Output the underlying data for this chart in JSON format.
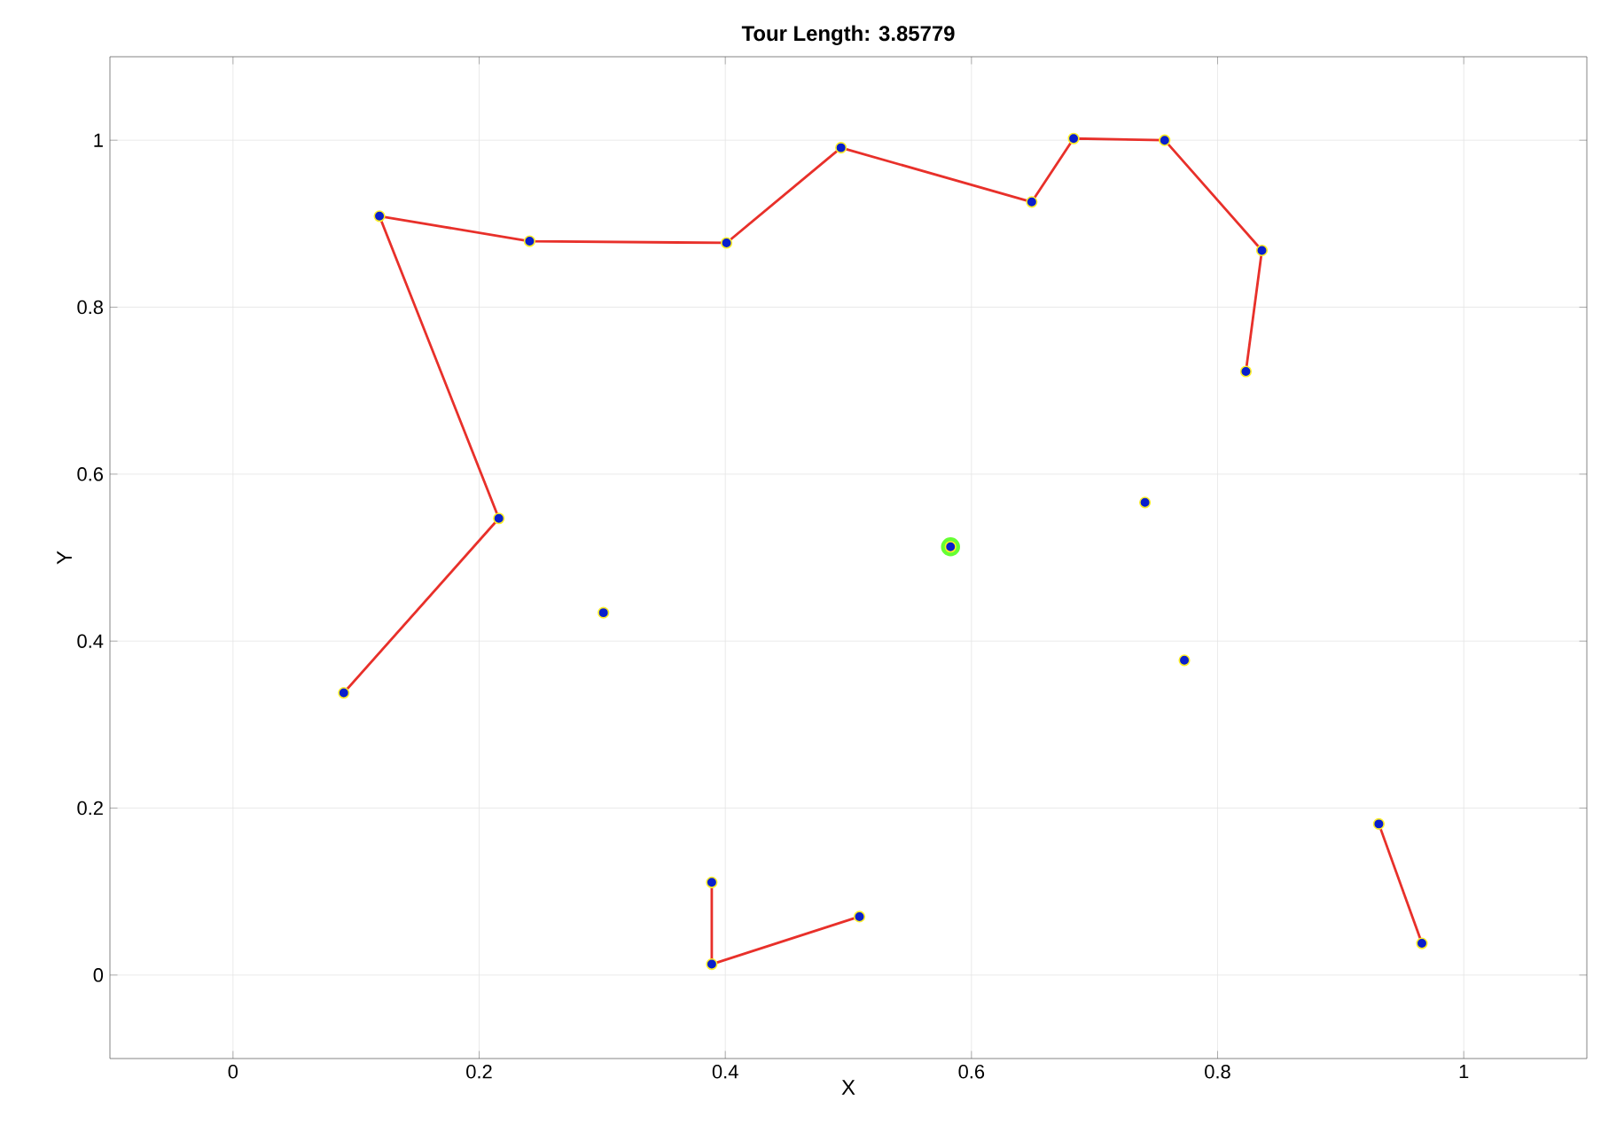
{
  "chart_data": {
    "type": "line",
    "title": "Tour Length: 3.85779",
    "xlabel": "X",
    "ylabel": "Y",
    "xlim": [
      -0.1,
      1.1
    ],
    "ylim": [
      -0.1,
      1.1
    ],
    "xticks": [
      0,
      0.2,
      0.4,
      0.6,
      0.8,
      1
    ],
    "yticks": [
      0,
      0.2,
      0.4,
      0.6,
      0.8,
      1
    ],
    "grid": true,
    "series": [
      {
        "type": "scatter",
        "marker": "circle",
        "color": "#66ff33",
        "x": [
          0.583
        ],
        "values": [
          0.513
        ]
      },
      {
        "color": "#e8302a",
        "x": [
          0.09,
          0.216,
          0.119,
          0.241,
          0.401,
          0.494,
          0.649,
          0.683,
          0.757,
          0.836,
          0.823
        ],
        "values": [
          0.338,
          0.547,
          0.909,
          0.879,
          0.877,
          0.991,
          0.926,
          1.002,
          1.0,
          0.868,
          0.723
        ]
      },
      {
        "color": "#e8302a",
        "x": [
          0.389,
          0.389,
          0.509
        ],
        "values": [
          0.111,
          0.013,
          0.07
        ]
      },
      {
        "color": "#e8302a",
        "x": [
          0.931,
          0.966
        ],
        "values": [
          0.181,
          0.038
        ]
      },
      {
        "type": "scatter",
        "marker": "circle",
        "color": "#0a1fcc",
        "x": [
          0.09,
          0.216,
          0.119,
          0.241,
          0.401,
          0.494,
          0.649,
          0.683,
          0.757,
          0.836,
          0.823,
          0.389,
          0.389,
          0.509,
          0.931,
          0.966,
          0.301,
          0.583,
          0.741,
          0.773
        ],
        "values": [
          0.338,
          0.547,
          0.909,
          0.879,
          0.877,
          0.991,
          0.926,
          1.002,
          1.0,
          0.868,
          0.723,
          0.111,
          0.013,
          0.07,
          0.181,
          0.038,
          0.434,
          0.513,
          0.566,
          0.377
        ]
      }
    ]
  }
}
